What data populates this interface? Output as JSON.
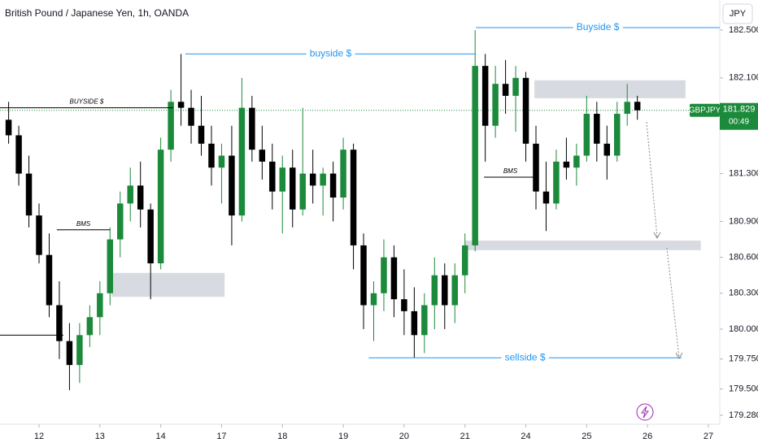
{
  "chart_data": {
    "type": "candlestick",
    "title": "British Pound / Japanese Yen, 1h, OANDA",
    "currency": "JPY",
    "up_color": "#1b8a3a",
    "down_color": "#000000",
    "xlim": [
      -15.4,
      268.5
    ],
    "ylim": [
      179.205,
      182.751
    ],
    "xticks": [
      {
        "value": 0,
        "label": "12"
      },
      {
        "value": 24,
        "label": "13"
      },
      {
        "value": 48,
        "label": "14"
      },
      {
        "value": 72,
        "label": "17"
      },
      {
        "value": 96,
        "label": "18"
      },
      {
        "value": 120,
        "label": "19"
      },
      {
        "value": 144,
        "label": "20"
      },
      {
        "value": 168,
        "label": "21"
      },
      {
        "value": 192,
        "label": "24"
      },
      {
        "value": 216,
        "label": "25"
      },
      {
        "value": 240,
        "label": "26"
      },
      {
        "value": 264,
        "label": "27"
      }
    ],
    "yticks": [
      {
        "value": 182.5,
        "label": "182.500"
      },
      {
        "value": 182.1,
        "label": "182.100"
      },
      {
        "value": 181.3,
        "label": "181.300"
      },
      {
        "value": 180.9,
        "label": "180.900"
      },
      {
        "value": 180.6,
        "label": "180.600"
      },
      {
        "value": 180.3,
        "label": "180.300"
      },
      {
        "value": 180.0,
        "label": "180.000"
      },
      {
        "value": 179.75,
        "label": "179.750"
      },
      {
        "value": 179.5,
        "label": "179.500"
      },
      {
        "value": 179.28,
        "label": "179.280"
      }
    ],
    "x": [
      -12,
      -8,
      -4,
      0,
      4,
      8,
      12,
      16,
      20,
      24,
      28,
      32,
      36,
      40,
      44,
      48,
      52,
      56,
      60,
      64,
      68,
      72,
      76,
      80,
      84,
      88,
      92,
      96,
      100,
      104,
      108,
      112,
      116,
      120,
      124,
      128,
      132,
      136,
      140,
      144,
      148,
      152,
      156,
      160,
      164,
      168,
      172,
      176,
      180,
      184,
      188,
      192,
      196,
      200,
      204,
      208,
      212,
      216,
      220,
      224,
      228,
      232,
      236
    ],
    "open": [
      181.75,
      181.62,
      181.3,
      180.95,
      180.62,
      180.2,
      179.9,
      179.7,
      179.95,
      180.1,
      180.3,
      180.75,
      181.05,
      181.2,
      181.0,
      180.55,
      181.5,
      181.9,
      181.85,
      181.7,
      181.55,
      181.35,
      181.45,
      180.95,
      181.85,
      181.5,
      181.4,
      181.15,
      181.35,
      181.0,
      181.3,
      181.2,
      181.3,
      181.1,
      181.5,
      180.7,
      180.2,
      180.3,
      180.6,
      180.25,
      180.15,
      179.95,
      180.2,
      180.45,
      180.2,
      180.45,
      180.7,
      182.2,
      181.7,
      182.05,
      181.95,
      182.1,
      181.55,
      181.15,
      181.05,
      181.4,
      181.35,
      181.45,
      181.8,
      181.55,
      181.45,
      181.8,
      181.9
    ],
    "high": [
      181.9,
      181.7,
      181.45,
      181.05,
      180.8,
      180.4,
      180.05,
      180.05,
      180.2,
      180.4,
      180.85,
      181.15,
      181.35,
      181.4,
      181.05,
      181.6,
      182.0,
      182.3,
      182.0,
      181.95,
      181.7,
      181.55,
      181.7,
      182.1,
      181.95,
      181.7,
      181.55,
      181.45,
      181.5,
      181.85,
      181.5,
      181.35,
      181.4,
      181.6,
      181.55,
      180.8,
      180.4,
      180.75,
      180.7,
      180.5,
      180.35,
      180.3,
      180.6,
      180.55,
      180.55,
      180.8,
      182.5,
      182.3,
      182.2,
      182.25,
      182.2,
      182.15,
      181.7,
      181.4,
      181.5,
      181.6,
      181.55,
      181.95,
      181.9,
      181.7,
      181.9,
      182.05,
      181.95
    ],
    "low": [
      181.55,
      181.2,
      180.85,
      180.55,
      180.1,
      179.75,
      179.49,
      179.55,
      179.85,
      179.95,
      180.2,
      180.6,
      180.9,
      180.85,
      180.25,
      180.5,
      181.4,
      181.7,
      181.55,
      181.45,
      181.2,
      181.05,
      180.7,
      180.9,
      181.4,
      181.25,
      181.0,
      180.8,
      180.85,
      180.95,
      181.05,
      180.95,
      180.9,
      181.0,
      180.5,
      180.0,
      179.9,
      180.15,
      180.1,
      179.95,
      179.76,
      179.8,
      180.0,
      180.0,
      180.05,
      180.3,
      180.65,
      181.4,
      181.6,
      181.8,
      181.65,
      181.4,
      181.0,
      180.82,
      181.0,
      181.25,
      181.2,
      181.4,
      181.4,
      181.25,
      181.4,
      181.7,
      181.75
    ],
    "close": [
      181.62,
      181.3,
      180.95,
      180.62,
      180.2,
      179.9,
      179.7,
      179.95,
      180.1,
      180.3,
      180.75,
      181.05,
      181.2,
      181.0,
      180.55,
      181.5,
      181.9,
      181.85,
      181.7,
      181.55,
      181.35,
      181.45,
      180.95,
      181.85,
      181.5,
      181.4,
      181.15,
      181.35,
      181.0,
      181.3,
      181.2,
      181.3,
      181.1,
      181.5,
      180.7,
      180.2,
      180.3,
      180.6,
      180.25,
      180.15,
      179.95,
      180.2,
      180.45,
      180.2,
      180.45,
      180.7,
      182.2,
      181.7,
      182.05,
      181.95,
      182.1,
      181.55,
      181.15,
      181.05,
      181.4,
      181.35,
      181.45,
      181.8,
      181.55,
      181.45,
      181.8,
      181.9,
      181.829
    ],
    "levels": [
      {
        "label": "BUYSIDE $",
        "value": 181.85,
        "x": [
          -15.4,
          52.9
        ],
        "color": "#000000",
        "label_position": "above"
      },
      {
        "label": "buyside $",
        "value": 182.3,
        "x": [
          57.7,
          172.3
        ],
        "color": "#2196f3",
        "label_position": "center"
      },
      {
        "label": "Buyside $",
        "value": 182.52,
        "x": [
          172.3,
          268.5
        ],
        "color": "#2196f3",
        "label_position": "center"
      },
      {
        "label": "sellside $",
        "value": 179.76,
        "x": [
          130,
          253.4
        ],
        "color": "#2196f3",
        "label_position": "center"
      },
      {
        "label": "BMS",
        "value": 180.83,
        "x": [
          7,
          28
        ],
        "color": "#000000",
        "label_position": "above"
      },
      {
        "label": "BMS",
        "value": 181.27,
        "x": [
          175.5,
          196.3
        ],
        "color": "#000000",
        "label_position": "above"
      },
      {
        "value": 179.95,
        "x": [
          -15.4,
          9.6
        ],
        "color": "#000000"
      }
    ],
    "zones": [
      {
        "top": 180.47,
        "bottom": 180.27,
        "x": [
          28.6,
          73.2
        ]
      },
      {
        "top": 180.74,
        "bottom": 180.66,
        "x": [
          168,
          261
        ]
      },
      {
        "top": 182.08,
        "bottom": 181.93,
        "x": [
          195.4,
          255
        ]
      }
    ],
    "last_price": {
      "symbol": "GBPJPY",
      "value": 181.829,
      "countdown": "00:49",
      "color": "#1b8a3a"
    }
  }
}
